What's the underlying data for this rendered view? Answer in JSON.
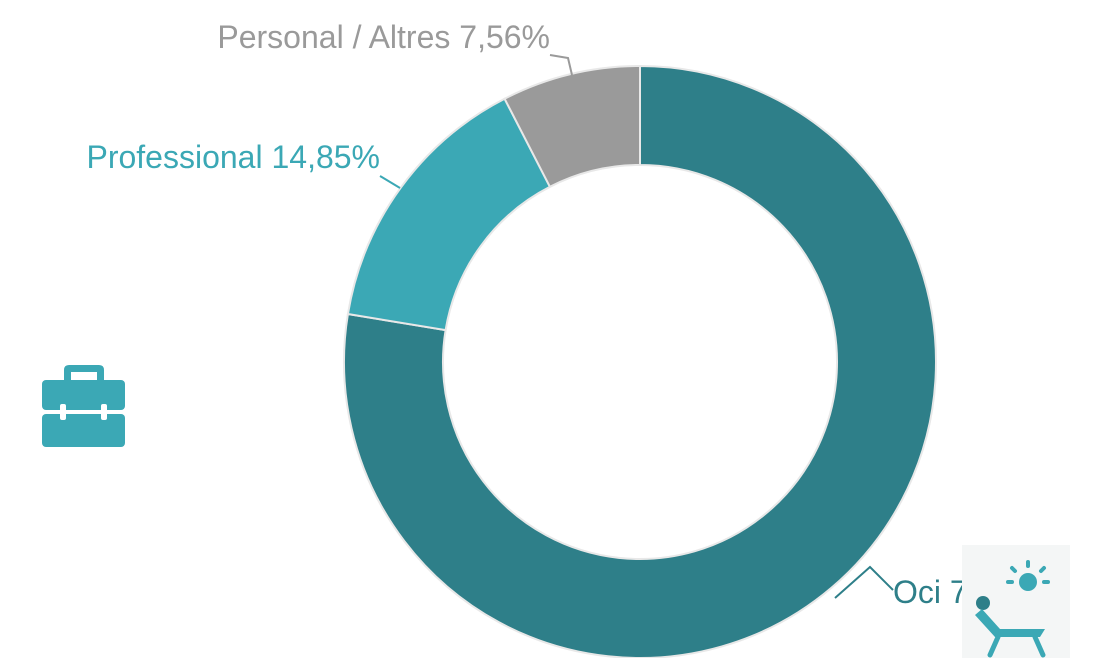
{
  "chart_data": {
    "type": "donut",
    "categories": [
      "Oci",
      "Professional",
      "Personal / Altres"
    ],
    "values": [
      77.59,
      14.85,
      7.56
    ],
    "value_labels": [
      "77,59%",
      "14,85%",
      "7,56%"
    ],
    "colors": [
      "#2e7f89",
      "#3ba8b5",
      "#9a9a9a"
    ]
  }
}
